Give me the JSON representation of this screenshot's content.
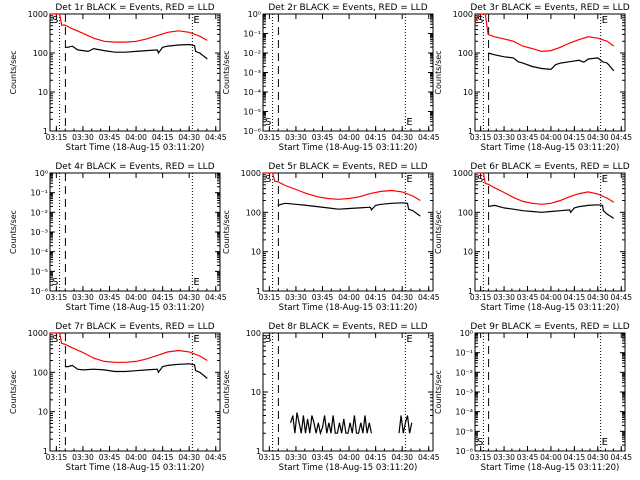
{
  "chart_data": [
    {
      "type": "line",
      "title": "Det 1r BLACK = Events, RED = LLD",
      "xlabel": "Start Time (18-Aug-15 03:11:20)",
      "ylabel": "Counts/sec",
      "yscale": "log",
      "ylim": [
        1,
        1000
      ],
      "ytick_labels": [
        "1",
        "10",
        "100",
        "1000"
      ],
      "xtick_labels": [
        "03:15",
        "03:30",
        "03:45",
        "04:00",
        "04:15",
        "04:30",
        "04:45"
      ],
      "markers": [
        "S",
        "E"
      ],
      "has_data": true,
      "series": [
        {
          "color": "#ff0000",
          "x": [
            3.19,
            3.25,
            3.28,
            3.3,
            3.33,
            3.4,
            3.5,
            3.6,
            3.7,
            3.8,
            3.9,
            4.0,
            4.1,
            4.2,
            4.3,
            4.4,
            4.5,
            4.6,
            4.67
          ],
          "y": [
            1000,
            1000,
            1000,
            520,
            520,
            420,
            320,
            240,
            200,
            190,
            190,
            200,
            230,
            280,
            340,
            370,
            340,
            270,
            210
          ]
        },
        {
          "color": "#000000",
          "x": [
            3.33,
            3.36,
            3.4,
            3.45,
            3.5,
            3.55,
            3.6,
            3.7,
            3.8,
            3.9,
            4.0,
            4.1,
            4.2,
            4.21,
            4.25,
            4.3,
            4.4,
            4.5,
            4.55,
            4.56,
            4.6,
            4.67
          ],
          "y": [
            140,
            140,
            150,
            120,
            115,
            110,
            130,
            115,
            105,
            105,
            110,
            115,
            120,
            100,
            140,
            150,
            160,
            165,
            155,
            110,
            100,
            70
          ]
        }
      ]
    },
    {
      "type": "line",
      "title": "Det 2r BLACK = Events, RED = LLD",
      "xlabel": "Start Time (18-Aug-15 03:11:20)",
      "ylabel": "Counts/sec",
      "yscale": "log",
      "ylim": [
        1e-06,
        1
      ],
      "ytick_labels": [
        "10⁻⁶",
        "10⁻⁵",
        "10⁻⁴",
        "10⁻³",
        "10⁻²",
        "10⁻¹",
        "10⁰"
      ],
      "xtick_labels": [
        "03:15",
        "03:30",
        "03:45",
        "04:00",
        "04:15",
        "04:30",
        "04:45"
      ],
      "markers": [
        "S",
        "E"
      ],
      "has_data": false,
      "series": []
    },
    {
      "type": "line",
      "title": "Det 3r BLACK = Events, RED = LLD",
      "xlabel": "Start Time (18-Aug-15 03:11:20)",
      "ylabel": "Counts/sec",
      "yscale": "log",
      "ylim": [
        1,
        1000
      ],
      "ytick_labels": [
        "1",
        "10",
        "100",
        "1000"
      ],
      "xtick_labels": [
        "03:15",
        "03:30",
        "03:45",
        "04:00",
        "04:15",
        "04:30",
        "04:45"
      ],
      "markers": [
        "S",
        "E"
      ],
      "has_data": true,
      "series": [
        {
          "color": "#ff0000",
          "x": [
            3.19,
            3.22,
            3.25,
            3.28,
            3.3,
            3.33,
            3.4,
            3.5,
            3.6,
            3.7,
            3.8,
            3.9,
            4.0,
            4.1,
            4.2,
            4.3,
            4.4,
            4.5,
            4.6,
            4.67
          ],
          "y": [
            600,
            900,
            1000,
            1000,
            1000,
            300,
            260,
            230,
            200,
            150,
            130,
            110,
            115,
            140,
            180,
            220,
            260,
            240,
            200,
            150
          ]
        },
        {
          "color": "#000000",
          "x": [
            3.33,
            3.4,
            3.5,
            3.6,
            3.65,
            3.7,
            3.8,
            3.9,
            4.0,
            4.05,
            4.1,
            4.2,
            4.3,
            4.35,
            4.4,
            4.5,
            4.55,
            4.6,
            4.67
          ],
          "y": [
            100,
            90,
            80,
            75,
            60,
            55,
            45,
            40,
            38,
            50,
            55,
            60,
            65,
            58,
            70,
            75,
            60,
            55,
            35
          ]
        }
      ]
    },
    {
      "type": "line",
      "title": "Det 4r BLACK = Events, RED = LLD",
      "xlabel": "Start Time (18-Aug-15 03:11:20)",
      "ylabel": "Counts/sec",
      "yscale": "log",
      "ylim": [
        1e-06,
        1
      ],
      "ytick_labels": [
        "10⁻⁶",
        "10⁻⁵",
        "10⁻⁴",
        "10⁻³",
        "10⁻²",
        "10⁻¹",
        "10⁰"
      ],
      "xtick_labels": [
        "03:15",
        "03:30",
        "03:45",
        "04:00",
        "04:15",
        "04:30",
        "04:45"
      ],
      "markers": [
        "S",
        "E"
      ],
      "has_data": false,
      "series": []
    },
    {
      "type": "line",
      "title": "Det 5r BLACK = Events, RED = LLD",
      "xlabel": "Start Time (18-Aug-15 03:11:20)",
      "ylabel": "Counts/sec",
      "yscale": "log",
      "ylim": [
        1,
        1000
      ],
      "ytick_labels": [
        "1",
        "10",
        "100",
        "1000"
      ],
      "xtick_labels": [
        "03:15",
        "03:30",
        "03:45",
        "04:00",
        "04:15",
        "04:30",
        "04:45"
      ],
      "markers": [
        "S",
        "E"
      ],
      "has_data": true,
      "series": [
        {
          "color": "#ff0000",
          "x": [
            3.19,
            3.25,
            3.28,
            3.3,
            3.33,
            3.4,
            3.5,
            3.6,
            3.7,
            3.8,
            3.9,
            4.0,
            4.1,
            4.2,
            4.3,
            4.4,
            4.5,
            4.6,
            4.67
          ],
          "y": [
            1000,
            1000,
            1000,
            620,
            600,
            480,
            380,
            300,
            250,
            225,
            215,
            225,
            250,
            300,
            340,
            360,
            330,
            260,
            200
          ]
        },
        {
          "color": "#000000",
          "x": [
            3.33,
            3.36,
            3.4,
            3.5,
            3.6,
            3.7,
            3.8,
            3.9,
            4.0,
            4.1,
            4.2,
            4.21,
            4.25,
            4.3,
            4.4,
            4.5,
            4.55,
            4.56,
            4.6,
            4.67
          ],
          "y": [
            150,
            160,
            170,
            160,
            150,
            140,
            130,
            120,
            125,
            130,
            135,
            115,
            150,
            160,
            170,
            175,
            170,
            120,
            110,
            80
          ]
        }
      ]
    },
    {
      "type": "line",
      "title": "Det 6r BLACK = Events, RED = LLD",
      "xlabel": "Start Time (18-Aug-15 03:11:20)",
      "ylabel": "Counts/sec",
      "yscale": "log",
      "ylim": [
        1,
        1000
      ],
      "ytick_labels": [
        "1",
        "10",
        "100",
        "1000"
      ],
      "xtick_labels": [
        "03:15",
        "03:30",
        "03:45",
        "04:00",
        "04:15",
        "04:30",
        "04:45"
      ],
      "markers": [
        "S",
        "E"
      ],
      "has_data": true,
      "series": [
        {
          "color": "#ff0000",
          "x": [
            3.19,
            3.25,
            3.28,
            3.3,
            3.33,
            3.4,
            3.5,
            3.6,
            3.7,
            3.8,
            3.9,
            4.0,
            4.1,
            4.2,
            4.3,
            4.4,
            4.5,
            4.6,
            4.67
          ],
          "y": [
            1000,
            1000,
            1000,
            540,
            520,
            420,
            320,
            240,
            190,
            170,
            160,
            170,
            200,
            250,
            300,
            330,
            290,
            230,
            180
          ]
        },
        {
          "color": "#000000",
          "x": [
            3.33,
            3.36,
            3.4,
            3.5,
            3.6,
            3.7,
            3.8,
            3.9,
            4.0,
            4.1,
            4.2,
            4.21,
            4.25,
            4.3,
            4.4,
            4.5,
            4.55,
            4.56,
            4.6,
            4.67
          ],
          "y": [
            140,
            145,
            150,
            130,
            120,
            110,
            105,
            100,
            105,
            110,
            115,
            100,
            130,
            140,
            150,
            155,
            150,
            110,
            90,
            70
          ]
        }
      ]
    },
    {
      "type": "line",
      "title": "Det 7r BLACK = Events, RED = LLD",
      "xlabel": "Start Time (18-Aug-15 03:11:20)",
      "ylabel": "Counts/sec",
      "yscale": "log",
      "ylim": [
        1,
        1000
      ],
      "ytick_labels": [
        "1",
        "10",
        "100",
        "1000"
      ],
      "xtick_labels": [
        "03:15",
        "03:30",
        "03:45",
        "04:00",
        "04:15",
        "04:30",
        "04:45"
      ],
      "markers": [
        "S",
        "E"
      ],
      "has_data": true,
      "series": [
        {
          "color": "#ff0000",
          "x": [
            3.19,
            3.25,
            3.28,
            3.3,
            3.33,
            3.4,
            3.5,
            3.6,
            3.7,
            3.8,
            3.9,
            4.0,
            4.1,
            4.2,
            4.3,
            4.4,
            4.5,
            4.6,
            4.67
          ],
          "y": [
            1000,
            1000,
            1000,
            540,
            520,
            420,
            320,
            230,
            190,
            180,
            180,
            190,
            220,
            270,
            330,
            360,
            330,
            260,
            200
          ]
        },
        {
          "color": "#000000",
          "x": [
            3.33,
            3.36,
            3.4,
            3.45,
            3.5,
            3.6,
            3.7,
            3.8,
            3.9,
            4.0,
            4.1,
            4.2,
            4.21,
            4.25,
            4.3,
            4.4,
            4.5,
            4.55,
            4.56,
            4.6,
            4.67
          ],
          "y": [
            140,
            140,
            150,
            120,
            115,
            120,
            115,
            105,
            105,
            110,
            115,
            120,
            100,
            140,
            150,
            160,
            165,
            155,
            110,
            100,
            70
          ]
        }
      ]
    },
    {
      "type": "line",
      "title": "Det 8r BLACK = Events, RED = LLD",
      "xlabel": "Start Time (18-Aug-15 03:11:20)",
      "ylabel": "Counts/sec",
      "yscale": "log",
      "ylim": [
        1,
        100
      ],
      "ytick_labels": [
        "1",
        "10",
        "100"
      ],
      "xtick_labels": [
        "03:15",
        "03:30",
        "03:45",
        "04:00",
        "04:15",
        "04:30",
        "04:45"
      ],
      "markers": [
        "S",
        "E"
      ],
      "has_data": true,
      "series": [
        {
          "color": "#000000",
          "x": [
            3.45,
            3.47,
            3.49,
            3.51,
            3.53,
            3.55,
            3.57,
            3.59,
            3.61,
            3.63,
            3.65,
            3.67,
            3.69,
            3.71,
            3.73,
            3.75,
            3.77,
            3.79,
            3.81,
            3.83,
            3.85,
            3.87,
            3.89,
            3.91,
            3.93,
            3.95,
            3.97,
            3.99,
            4.01,
            4.03,
            4.05,
            4.07,
            4.09,
            4.11,
            4.13,
            4.15,
            4.17,
            4.19,
            4.21
          ],
          "y": [
            3,
            4,
            2,
            4.5,
            3,
            2,
            4,
            2,
            3.5,
            2,
            4,
            3,
            2,
            3,
            2,
            2.5,
            4,
            2,
            3,
            2,
            4,
            2,
            2,
            3,
            2,
            3.5,
            2,
            2,
            3,
            2,
            4,
            2,
            2,
            3,
            2,
            4,
            2,
            3,
            2
          ]
        },
        {
          "color": "#000000",
          "x": [
            4.47,
            4.49,
            4.51,
            4.53,
            4.55,
            4.57,
            4.59
          ],
          "y": [
            2,
            4,
            2,
            3,
            4,
            2,
            3
          ]
        }
      ]
    },
    {
      "type": "line",
      "title": "Det 9r BLACK = Events, RED = LLD",
      "xlabel": "Start Time (18-Aug-15 03:11:20)",
      "ylabel": "Counts/sec",
      "yscale": "log",
      "ylim": [
        1e-06,
        1
      ],
      "ytick_labels": [
        "10⁻⁶",
        "10⁻⁵",
        "10⁻⁴",
        "10⁻³",
        "10⁻²",
        "10⁻¹",
        "10⁰"
      ],
      "xtick_labels": [
        "03:15",
        "03:30",
        "03:45",
        "04:00",
        "04:15",
        "04:30",
        "04:45"
      ],
      "markers": [
        "S",
        "E"
      ],
      "has_data": false,
      "series": []
    }
  ],
  "colors": {
    "events": "#000000",
    "lld": "#ff0000"
  }
}
